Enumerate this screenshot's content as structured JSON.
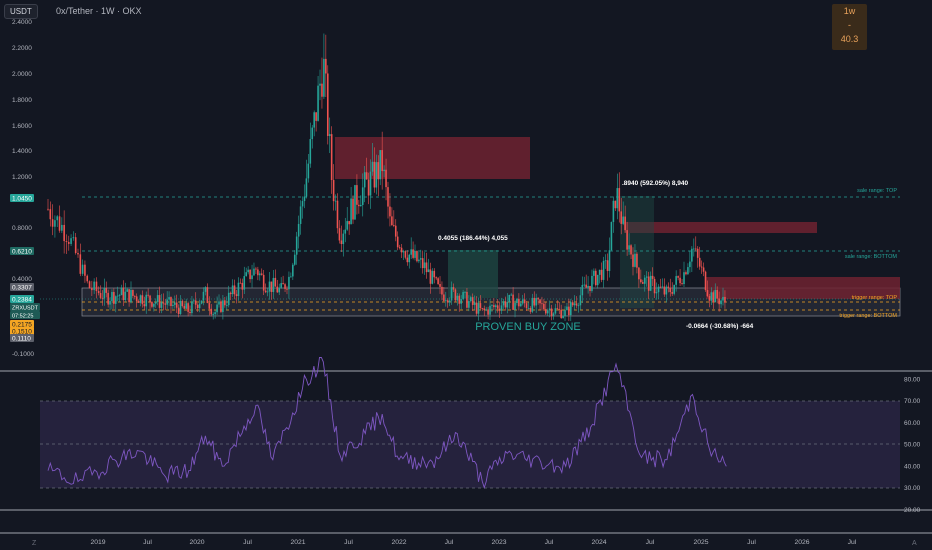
{
  "header": {
    "currency": "USDT",
    "symbol": "0x/Tether · 1W · OKX",
    "tf_box": {
      "line1": "1w",
      "line2": "-",
      "line3": "40.3"
    }
  },
  "colors": {
    "background": "#131722",
    "bull": "#26a69a",
    "bear": "#ef5350",
    "zone_red": "#7a2430",
    "rsi_line": "#7e57c2",
    "rsi_band": "#2a2545",
    "buy_zone_text": "#26a69a",
    "level_top": "#26a69a",
    "trigger": "#f5a623"
  },
  "price_axis": {
    "ticks": [
      "2.4000",
      "2.2000",
      "2.0000",
      "1.8000",
      "1.6000",
      "1.4000",
      "1.2000",
      "0.8000",
      "0.4000",
      "-0.1000"
    ],
    "badges": [
      {
        "text": "1.0450",
        "kind": "green"
      },
      {
        "text": "0.6210",
        "kind": "teal"
      },
      {
        "text": "0.3307",
        "kind": "gray"
      },
      {
        "text": "0.2384",
        "kind": "cur"
      },
      {
        "text": "ZRXUSDT",
        "kind": "cur2"
      },
      {
        "text": "07:52:25",
        "kind": "cur3"
      },
      {
        "text": "0.2175",
        "kind": "orange"
      },
      {
        "text": "0.1510",
        "kind": "orange"
      },
      {
        "text": "0.1110",
        "kind": "gray"
      }
    ]
  },
  "rsi_axis": {
    "ticks": [
      "80.00",
      "70.00",
      "60.00",
      "50.00",
      "40.00",
      "30.00",
      "20.00"
    ]
  },
  "time_axis": {
    "labels": [
      "2019",
      "Jul",
      "2020",
      "Jul",
      "2021",
      "Jul",
      "2022",
      "Jul",
      "2023",
      "Jul",
      "2024",
      "Jul",
      "2025",
      "Jul",
      "2026",
      "Jul"
    ]
  },
  "annotations": {
    "buy_zone": "PROVEN BUY ZONE",
    "measure_1": "0.4055 (186.44%) 4,055",
    "measure_2": ".8940 (592.05%) 8,940",
    "measure_3": "-0.0664 (-30.68%) -664",
    "sale_top": "sale range: TOP",
    "sale_bottom": "sale range: BOTTOM",
    "trigger_top": "trigger range: TOP",
    "trigger_bottom": "trigger range: BOTTOM"
  },
  "chart_data": [
    {
      "type": "candlestick",
      "title": "0x/Tether · 1W · OKX",
      "ylim": [
        -0.1,
        2.4
      ],
      "x_range": [
        "2018-08",
        "2026-10"
      ],
      "key_points": [
        {
          "x": "2018-08",
          "y": 0.95
        },
        {
          "x": "2018-10",
          "y": 0.75
        },
        {
          "x": "2018-11",
          "y": 0.55
        },
        {
          "x": "2018-12",
          "y": 0.35
        },
        {
          "x": "2019-02",
          "y": 0.28
        },
        {
          "x": "2019-04",
          "y": 0.3
        },
        {
          "x": "2019-06",
          "y": 0.28
        },
        {
          "x": "2019-09",
          "y": 0.24
        },
        {
          "x": "2019-12",
          "y": 0.19
        },
        {
          "x": "2020-02",
          "y": 0.3
        },
        {
          "x": "2020-03",
          "y": 0.17
        },
        {
          "x": "2020-06",
          "y": 0.35
        },
        {
          "x": "2020-08",
          "y": 0.48
        },
        {
          "x": "2020-09",
          "y": 0.38
        },
        {
          "x": "2020-11",
          "y": 0.32
        },
        {
          "x": "2020-12",
          "y": 0.42
        },
        {
          "x": "2021-02",
          "y": 1.2
        },
        {
          "x": "2021-04",
          "y": 2.1
        },
        {
          "x": "2021-05",
          "y": 1.2
        },
        {
          "x": "2021-06",
          "y": 0.75
        },
        {
          "x": "2021-08",
          "y": 1.05
        },
        {
          "x": "2021-10",
          "y": 1.2
        },
        {
          "x": "2021-11",
          "y": 1.3
        },
        {
          "x": "2021-12",
          "y": 0.8
        },
        {
          "x": "2022-02",
          "y": 0.6
        },
        {
          "x": "2022-04",
          "y": 0.5
        },
        {
          "x": "2022-06",
          "y": 0.3
        },
        {
          "x": "2022-08",
          "y": 0.3
        },
        {
          "x": "2022-11",
          "y": 0.18
        },
        {
          "x": "2023-02",
          "y": 0.25
        },
        {
          "x": "2023-06",
          "y": 0.22
        },
        {
          "x": "2023-09",
          "y": 0.17
        },
        {
          "x": "2023-12",
          "y": 0.38
        },
        {
          "x": "2024-02",
          "y": 0.5
        },
        {
          "x": "2024-03",
          "y": 1.1
        },
        {
          "x": "2024-04",
          "y": 0.75
        },
        {
          "x": "2024-06",
          "y": 0.4
        },
        {
          "x": "2024-09",
          "y": 0.3
        },
        {
          "x": "2024-11",
          "y": 0.45
        },
        {
          "x": "2024-12",
          "y": 0.65
        },
        {
          "x": "2025-02",
          "y": 0.3
        },
        {
          "x": "2025-04",
          "y": 0.24
        }
      ],
      "zones": [
        {
          "label": "PROVEN BUY ZONE",
          "y_from": 0.11,
          "y_to": 0.33
        },
        {
          "label": "sale range: TOP",
          "y": 1.045
        },
        {
          "label": "sale range: BOTTOM",
          "y": 0.621
        },
        {
          "label": "trigger range: TOP",
          "y": 0.2175
        },
        {
          "label": "trigger range: BOTTOM",
          "y": 0.151
        }
      ]
    },
    {
      "type": "line",
      "series": [
        {
          "values": [
            {
              "x": "2018-08",
              "y": 38
            },
            {
              "x": "2018-11",
              "y": 33
            },
            {
              "x": "2019-03",
              "y": 43
            },
            {
              "x": "2019-06",
              "y": 47
            },
            {
              "x": "2019-09",
              "y": 36
            },
            {
              "x": "2019-12",
              "y": 38
            },
            {
              "x": "2020-02",
              "y": 54
            },
            {
              "x": "2020-04",
              "y": 40
            },
            {
              "x": "2020-08",
              "y": 68
            },
            {
              "x": "2020-10",
              "y": 43
            },
            {
              "x": "2021-02",
              "y": 80
            },
            {
              "x": "2021-04",
              "y": 88
            },
            {
              "x": "2021-06",
              "y": 45
            },
            {
              "x": "2021-09",
              "y": 55
            },
            {
              "x": "2021-11",
              "y": 64
            },
            {
              "x": "2022-01",
              "y": 43
            },
            {
              "x": "2022-05",
              "y": 42
            },
            {
              "x": "2022-08",
              "y": 55
            },
            {
              "x": "2022-11",
              "y": 33
            },
            {
              "x": "2023-02",
              "y": 46
            },
            {
              "x": "2023-06",
              "y": 42
            },
            {
              "x": "2023-09",
              "y": 40
            },
            {
              "x": "2023-12",
              "y": 58
            },
            {
              "x": "2024-03",
              "y": 87
            },
            {
              "x": "2024-06",
              "y": 44
            },
            {
              "x": "2024-09",
              "y": 43
            },
            {
              "x": "2024-12",
              "y": 73
            },
            {
              "x": "2025-02",
              "y": 48
            },
            {
              "x": "2025-04",
              "y": 40
            }
          ]
        }
      ],
      "ylim": [
        20,
        85
      ],
      "bands": [
        30,
        50,
        70
      ]
    }
  ]
}
